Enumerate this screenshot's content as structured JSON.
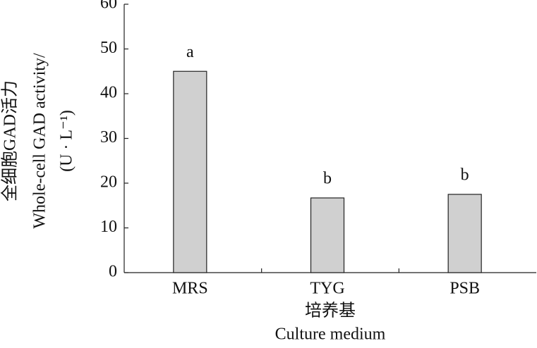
{
  "chart_data": {
    "type": "bar",
    "categories": [
      "MRS",
      "TYG",
      "PSB"
    ],
    "values": [
      45,
      16.7,
      17.5
    ],
    "significance": [
      "a",
      "b",
      "b"
    ],
    "color": "#d0d0d0",
    "ylim": [
      0,
      60
    ],
    "yticks": [
      0,
      10,
      20,
      30,
      40,
      50,
      60
    ],
    "y_label": [
      "全细胞GAD活力",
      "Whole-cell GAD activity/",
      "(U · L⁻¹)"
    ],
    "x_label": [
      "培养基",
      "Culture medium"
    ]
  }
}
